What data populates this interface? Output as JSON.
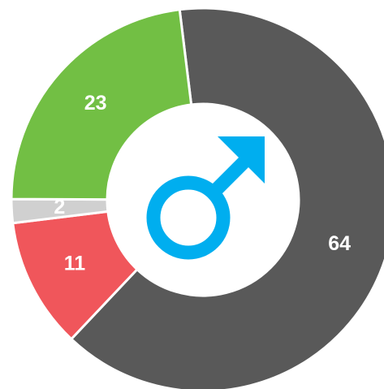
{
  "chart_data": {
    "type": "donut",
    "values": [
      64,
      11,
      2,
      23
    ],
    "colors": [
      "#595959",
      "#f0565b",
      "#d0d0d0",
      "#72bf44"
    ]
  }
}
